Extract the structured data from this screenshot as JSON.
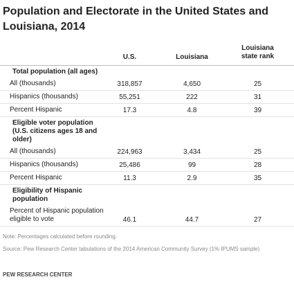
{
  "title": "Population and Electorate in the United States and Louisiana, 2014",
  "columns": [
    "U.S.",
    "Louisiana",
    "Louisiana state rank"
  ],
  "sections": [
    {
      "label": "Total population (all ages)",
      "rows": [
        {
          "label": "All (thousands)",
          "values": [
            "318,857",
            "4,650",
            "25"
          ]
        },
        {
          "label": "Hispanics (thousands)",
          "values": [
            "55,251",
            "222",
            "31"
          ]
        },
        {
          "label": "Percent Hispanic",
          "values": [
            "17.3",
            "4.8",
            "39"
          ]
        }
      ]
    },
    {
      "label": "Eligible voter population (U.S. citizens ages 18 and older)",
      "rows": [
        {
          "label": "All (thousands)",
          "values": [
            "224,963",
            "3,434",
            "25"
          ]
        },
        {
          "label": "Hispanics (thousands)",
          "values": [
            "25,486",
            "99",
            "28"
          ]
        },
        {
          "label": "Percent Hispanic",
          "values": [
            "11.3",
            "2.9",
            "35"
          ]
        }
      ]
    },
    {
      "label": "Eligibility of Hispanic population",
      "rows": [
        {
          "label": "Percent of Hispanic population eligible to vote",
          "values": [
            "46.1",
            "44.7",
            "27"
          ]
        }
      ]
    }
  ],
  "note": "Note: Percentages calculated before rounding.",
  "source": "Source: Pew Research Center tabulations of the 2014 American Community Survey (1% IPUMS sample)",
  "footer": "PEW RESEARCH CENTER"
}
